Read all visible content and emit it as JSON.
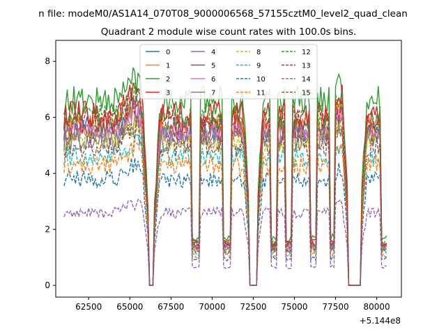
{
  "chart_data": {
    "type": "line",
    "suptitle": "n file: modeM0/AS1A14_070T08_9000006568_57155cztM0_level2_quad_clean",
    "title": "Quadrant 2 module wise count rates with 100.0s bins.",
    "xlabel": "",
    "ylabel": "",
    "x_offset_label": "+5.144e8",
    "xlim": [
      60500,
      81500
    ],
    "ylim": [
      -0.42,
      8.75
    ],
    "x_ticks": [
      62500,
      65000,
      67500,
      70000,
      72500,
      75000,
      77500,
      80000
    ],
    "x_tick_labels": [
      "62500",
      "65000",
      "67500",
      "70000",
      "72500",
      "75000",
      "77500",
      "80000"
    ],
    "y_ticks": [
      0,
      2,
      4,
      6,
      8
    ],
    "y_tick_labels": [
      "0",
      "2",
      "4",
      "6",
      "8"
    ],
    "x_start": 61000,
    "x_end": 80600,
    "x_step": 100,
    "gaps": [
      [
        66150,
        66450
      ],
      [
        72300,
        72700
      ],
      [
        78300,
        79000
      ]
    ],
    "dips": [
      [
        68800,
        69200
      ],
      [
        70700,
        71100
      ],
      [
        73600,
        73900
      ],
      [
        74500,
        74800
      ],
      [
        76000,
        76300
      ],
      [
        77200,
        77400
      ],
      [
        80300,
        80600
      ]
    ],
    "legend": {
      "position": "upper-center",
      "columns": 4
    },
    "series": [
      {
        "name": "0",
        "level": 5.6,
        "color": "#1f77b4",
        "dashed": false
      },
      {
        "name": "1",
        "level": 5.7,
        "color": "#ff7f0e",
        "dashed": false
      },
      {
        "name": "2",
        "level": 6.6,
        "color": "#2ca02c",
        "dashed": false
      },
      {
        "name": "3",
        "level": 6.1,
        "color": "#d62728",
        "dashed": false
      },
      {
        "name": "4",
        "level": 5.4,
        "color": "#9467bd",
        "dashed": false
      },
      {
        "name": "5",
        "level": 5.6,
        "color": "#8c564b",
        "dashed": false
      },
      {
        "name": "6",
        "level": 5.5,
        "color": "#e377c2",
        "dashed": false
      },
      {
        "name": "7",
        "level": 5.2,
        "color": "#7f7f7f",
        "dashed": false
      },
      {
        "name": "8",
        "level": 5.1,
        "color": "#bcbd22",
        "dashed": true
      },
      {
        "name": "9",
        "level": 4.6,
        "color": "#17becf",
        "dashed": true
      },
      {
        "name": "10",
        "level": 3.8,
        "color": "#1f77b4",
        "dashed": true
      },
      {
        "name": "11",
        "level": 4.3,
        "color": "#ff7f0e",
        "dashed": true
      },
      {
        "name": "12",
        "level": 6.0,
        "color": "#2ca02c",
        "dashed": true
      },
      {
        "name": "13",
        "level": 5.9,
        "color": "#d62728",
        "dashed": true
      },
      {
        "name": "14",
        "level": 2.6,
        "color": "#9467bd",
        "dashed": true
      },
      {
        "name": "15",
        "level": 5.0,
        "color": "#8c564b",
        "dashed": true
      }
    ]
  }
}
